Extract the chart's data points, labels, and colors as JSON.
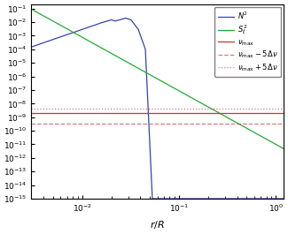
{
  "title": "",
  "xlabel": "$r/R$",
  "xlim": [
    0.003,
    1.2
  ],
  "ylim": [
    1e-15,
    0.2
  ],
  "hline_nu_max": 2e-09,
  "hline_nu_minus": 3.5e-10,
  "hline_nu_plus": 4.5e-09,
  "color_N2": "#3344aa",
  "color_S2": "#22aa33",
  "color_nu": "#cc3333",
  "legend_labels": [
    "$N^2$",
    "$S_\\ell^2$",
    "$\\nu_{\\mathrm{max}}$",
    "$\\nu_{\\mathrm{max}} - 5\\Delta\\nu$",
    "$\\nu_{\\mathrm{max}} + 5\\Delta\\nu$"
  ]
}
